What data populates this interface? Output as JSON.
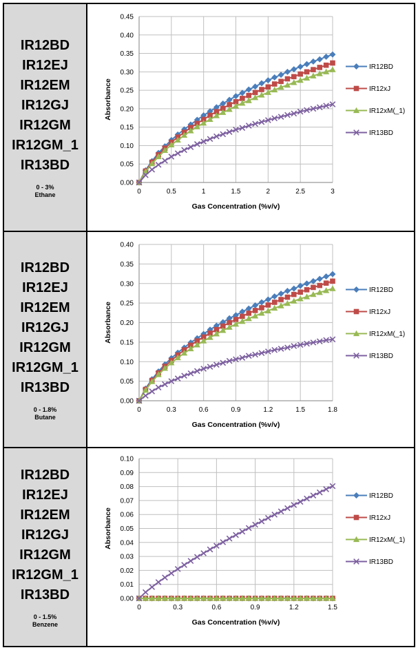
{
  "panels": [
    {
      "models": [
        "IR12BD",
        "IR12EJ",
        "IR12EM",
        "IR12GJ",
        "IR12GM",
        "IR12GM_1",
        "IR13BD"
      ],
      "range": "0 - 3%",
      "gas": "Ethane",
      "chart_data": {
        "type": "line",
        "xlabel": "Gas Concentration (%v/v)",
        "ylabel": "Absorbance",
        "xlim": [
          0,
          3
        ],
        "ylim": [
          0,
          0.45
        ],
        "xticks": [
          0,
          0.5,
          1,
          1.5,
          2,
          2.5,
          3
        ],
        "xtick_labels": [
          "0",
          "0.5",
          "1",
          "1.5",
          "2",
          "2.5",
          "3"
        ],
        "yticks": [
          0,
          0.05,
          0.1,
          0.15,
          0.2,
          0.25,
          0.3,
          0.35,
          0.4,
          0.45
        ],
        "ytick_labels": [
          "0.00",
          "0.05",
          "0.10",
          "0.15",
          "0.20",
          "0.25",
          "0.30",
          "0.35",
          "0.40",
          "0.45"
        ],
        "grid": true,
        "legend_position": "right",
        "x": [
          0,
          0.1,
          0.2,
          0.3,
          0.4,
          0.5,
          0.6,
          0.7,
          0.8,
          0.9,
          1,
          1.1,
          1.2,
          1.3,
          1.4,
          1.5,
          1.6,
          1.7,
          1.8,
          1.9,
          2,
          2.1,
          2.2,
          2.3,
          2.4,
          2.5,
          2.6,
          2.7,
          2.8,
          2.9,
          3
        ],
        "series": [
          {
            "name": "IR12BD",
            "color": "#4a7ebb",
            "marker": "diamond",
            "values": [
              0,
              0.033,
              0.058,
              0.08,
              0.098,
              0.115,
              0.13,
              0.144,
              0.157,
              0.17,
              0.182,
              0.193,
              0.204,
              0.214,
              0.224,
              0.234,
              0.243,
              0.252,
              0.26,
              0.269,
              0.277,
              0.285,
              0.292,
              0.3,
              0.307,
              0.314,
              0.321,
              0.328,
              0.334,
              0.341,
              0.347
            ]
          },
          {
            "name": "IR12xJ",
            "color": "#be4b48",
            "marker": "square",
            "values": [
              0,
              0.031,
              0.055,
              0.075,
              0.093,
              0.109,
              0.123,
              0.136,
              0.149,
              0.16,
              0.171,
              0.182,
              0.192,
              0.201,
              0.211,
              0.219,
              0.228,
              0.236,
              0.244,
              0.252,
              0.259,
              0.267,
              0.274,
              0.281,
              0.287,
              0.294,
              0.3,
              0.306,
              0.312,
              0.318,
              0.324
            ]
          },
          {
            "name": "IR12xM(_1)",
            "color": "#98b954",
            "marker": "triangle",
            "values": [
              0,
              0.029,
              0.051,
              0.07,
              0.087,
              0.102,
              0.115,
              0.128,
              0.14,
              0.151,
              0.161,
              0.171,
              0.181,
              0.19,
              0.198,
              0.207,
              0.215,
              0.222,
              0.23,
              0.237,
              0.244,
              0.251,
              0.258,
              0.264,
              0.271,
              0.277,
              0.283,
              0.289,
              0.295,
              0.3,
              0.306
            ]
          },
          {
            "name": "IR13BD",
            "color": "#7d60a0",
            "marker": "x",
            "values": [
              0,
              0.02,
              0.035,
              0.048,
              0.059,
              0.07,
              0.079,
              0.088,
              0.096,
              0.104,
              0.111,
              0.118,
              0.125,
              0.131,
              0.137,
              0.143,
              0.148,
              0.154,
              0.159,
              0.164,
              0.169,
              0.174,
              0.178,
              0.183,
              0.187,
              0.192,
              0.196,
              0.2,
              0.204,
              0.208,
              0.212
            ]
          }
        ]
      }
    },
    {
      "models": [
        "IR12BD",
        "IR12EJ",
        "IR12EM",
        "IR12GJ",
        "IR12GM",
        "IR12GM_1",
        "IR13BD"
      ],
      "range": "0 - 1.8%",
      "gas": "Butane",
      "chart_data": {
        "type": "line",
        "xlabel": "Gas Concentration (%v/v)",
        "ylabel": "Absorbance",
        "xlim": [
          0,
          1.8
        ],
        "ylim": [
          0,
          0.4
        ],
        "xticks": [
          0,
          0.3,
          0.6,
          0.9,
          1.2,
          1.5,
          1.8
        ],
        "xtick_labels": [
          "0",
          "0.3",
          "0.6",
          "0.9",
          "1.2",
          "1.5",
          "1.8"
        ],
        "yticks": [
          0,
          0.05,
          0.1,
          0.15,
          0.2,
          0.25,
          0.3,
          0.35,
          0.4
        ],
        "ytick_labels": [
          "0.00",
          "0.05",
          "0.10",
          "0.15",
          "0.20",
          "0.25",
          "0.30",
          "0.35",
          "0.40"
        ],
        "grid": true,
        "legend_position": "right",
        "x": [
          0,
          0.06,
          0.12,
          0.18,
          0.24,
          0.3,
          0.36,
          0.42,
          0.48,
          0.54,
          0.6,
          0.66,
          0.72,
          0.78,
          0.84,
          0.9,
          0.96,
          1.02,
          1.08,
          1.14,
          1.2,
          1.26,
          1.32,
          1.38,
          1.44,
          1.5,
          1.56,
          1.62,
          1.68,
          1.74,
          1.8
        ],
        "series": [
          {
            "name": "IR12BD",
            "color": "#4a7ebb",
            "marker": "diamond",
            "values": [
              0,
              0.031,
              0.055,
              0.075,
              0.093,
              0.109,
              0.123,
              0.136,
              0.149,
              0.16,
              0.171,
              0.182,
              0.192,
              0.201,
              0.211,
              0.219,
              0.228,
              0.236,
              0.244,
              0.252,
              0.259,
              0.267,
              0.274,
              0.281,
              0.287,
              0.294,
              0.3,
              0.306,
              0.312,
              0.318,
              0.324
            ]
          },
          {
            "name": "IR12xJ",
            "color": "#be4b48",
            "marker": "square",
            "values": [
              0,
              0.029,
              0.052,
              0.071,
              0.088,
              0.103,
              0.117,
              0.13,
              0.142,
              0.153,
              0.163,
              0.173,
              0.182,
              0.191,
              0.2,
              0.208,
              0.216,
              0.224,
              0.231,
              0.238,
              0.245,
              0.252,
              0.259,
              0.265,
              0.272,
              0.278,
              0.284,
              0.29,
              0.295,
              0.301,
              0.306
            ]
          },
          {
            "name": "IR12xM(_1)",
            "color": "#98b954",
            "marker": "triangle",
            "values": [
              0,
              0.027,
              0.049,
              0.067,
              0.083,
              0.097,
              0.11,
              0.122,
              0.133,
              0.143,
              0.153,
              0.162,
              0.171,
              0.18,
              0.188,
              0.196,
              0.203,
              0.21,
              0.217,
              0.224,
              0.23,
              0.237,
              0.243,
              0.249,
              0.255,
              0.261,
              0.266,
              0.272,
              0.277,
              0.282,
              0.287
            ]
          },
          {
            "name": "IR13BD",
            "color": "#7d60a0",
            "marker": "x",
            "values": [
              0,
              0.013,
              0.024,
              0.034,
              0.042,
              0.05,
              0.057,
              0.064,
              0.07,
              0.076,
              0.082,
              0.087,
              0.092,
              0.097,
              0.102,
              0.106,
              0.11,
              0.115,
              0.118,
              0.122,
              0.126,
              0.13,
              0.133,
              0.136,
              0.14,
              0.143,
              0.146,
              0.149,
              0.152,
              0.155,
              0.157
            ]
          }
        ]
      }
    },
    {
      "models": [
        "IR12BD",
        "IR12EJ",
        "IR12EM",
        "IR12GJ",
        "IR12GM",
        "IR12GM_1",
        "IR13BD"
      ],
      "range": "0 - 1.5%",
      "gas": "Benzene",
      "chart_data": {
        "type": "line",
        "xlabel": "Gas Concentration (%v/v)",
        "ylabel": "Absorbance",
        "xlim": [
          0,
          1.5
        ],
        "ylim": [
          0,
          0.1
        ],
        "xticks": [
          0,
          0.3,
          0.6,
          0.9,
          1.2,
          1.5
        ],
        "xtick_labels": [
          "0",
          "0.3",
          "0.6",
          "0.9",
          "1.2",
          "1.5"
        ],
        "yticks": [
          0,
          0.01,
          0.02,
          0.03,
          0.04,
          0.05,
          0.06,
          0.07,
          0.08,
          0.09,
          0.1
        ],
        "ytick_labels": [
          "0.00",
          "0.01",
          "0.02",
          "0.03",
          "0.04",
          "0.05",
          "0.06",
          "0.07",
          "0.08",
          "0.09",
          "0.10"
        ],
        "grid": true,
        "legend_position": "right",
        "x": [
          0,
          0.05,
          0.1,
          0.15,
          0.2,
          0.25,
          0.3,
          0.35,
          0.4,
          0.45,
          0.5,
          0.55,
          0.6,
          0.65,
          0.7,
          0.75,
          0.8,
          0.85,
          0.9,
          0.95,
          1,
          1.05,
          1.1,
          1.15,
          1.2,
          1.25,
          1.3,
          1.35,
          1.4,
          1.45,
          1.5
        ],
        "series": [
          {
            "name": "IR12BD",
            "color": "#4a7ebb",
            "marker": "diamond",
            "values": [
              0,
              0,
              0,
              0,
              0,
              0,
              0,
              0,
              0,
              0,
              0,
              0,
              0,
              0,
              0,
              0,
              0,
              0,
              0,
              0,
              0,
              0,
              0,
              0,
              0,
              0,
              0,
              0,
              0,
              0,
              0
            ]
          },
          {
            "name": "IR12xJ",
            "color": "#be4b48",
            "marker": "square",
            "values": [
              0,
              0,
              0,
              0,
              0,
              0,
              0,
              0,
              0,
              0,
              0,
              0,
              0,
              0,
              0,
              0,
              0,
              0,
              0,
              0,
              0,
              0,
              0,
              0,
              0,
              0,
              0,
              0,
              0,
              0,
              0
            ]
          },
          {
            "name": "IR12xM(_1)",
            "color": "#98b954",
            "marker": "triangle",
            "values": [
              0,
              0,
              0,
              0,
              0,
              0,
              0,
              0,
              0,
              0,
              0,
              0,
              0,
              0,
              0,
              0,
              0,
              0,
              0,
              0,
              0,
              0,
              0,
              0,
              0,
              0,
              0,
              0,
              0,
              0,
              0
            ]
          },
          {
            "name": "IR13BD",
            "color": "#7d60a0",
            "marker": "x",
            "values": [
              0,
              0.0044,
              0.0081,
              0.0116,
              0.0149,
              0.018,
              0.021,
              0.0239,
              0.0268,
              0.0296,
              0.0323,
              0.035,
              0.0376,
              0.0402,
              0.0428,
              0.0453,
              0.0478,
              0.0503,
              0.0527,
              0.0551,
              0.0575,
              0.0599,
              0.0622,
              0.0645,
              0.0668,
              0.0691,
              0.0714,
              0.0736,
              0.0758,
              0.0781,
              0.0803
            ]
          }
        ]
      }
    }
  ]
}
